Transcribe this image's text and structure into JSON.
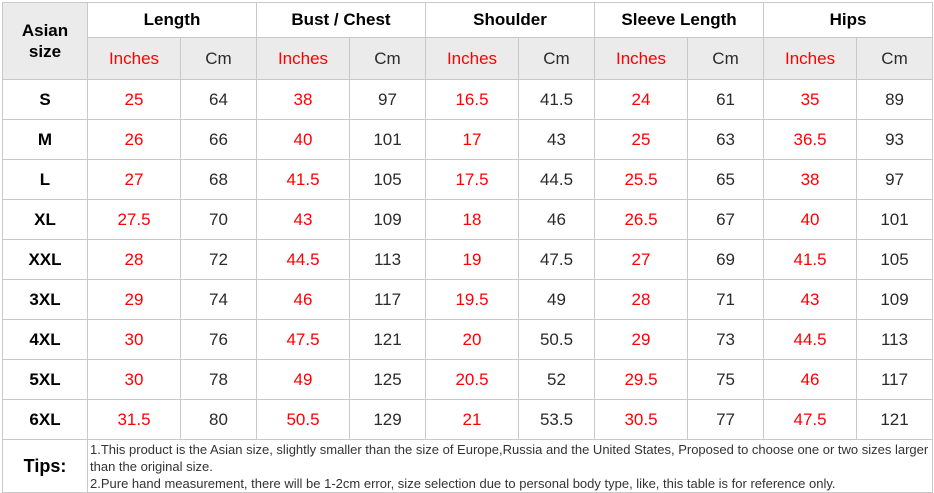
{
  "table": {
    "corner_header": "Asian size",
    "measurements": [
      "Length",
      "Bust / Chest",
      "Shoulder",
      "Sleeve Length",
      "Hips"
    ],
    "units": [
      "Inches",
      "Cm"
    ],
    "rows": [
      {
        "size": "S",
        "values": [
          "25",
          "64",
          "38",
          "97",
          "16.5",
          "41.5",
          "24",
          "61",
          "35",
          "89"
        ]
      },
      {
        "size": "M",
        "values": [
          "26",
          "66",
          "40",
          "101",
          "17",
          "43",
          "25",
          "63",
          "36.5",
          "93"
        ]
      },
      {
        "size": "L",
        "values": [
          "27",
          "68",
          "41.5",
          "105",
          "17.5",
          "44.5",
          "25.5",
          "65",
          "38",
          "97"
        ]
      },
      {
        "size": "XL",
        "values": [
          "27.5",
          "70",
          "43",
          "109",
          "18",
          "46",
          "26.5",
          "67",
          "40",
          "101"
        ]
      },
      {
        "size": "XXL",
        "values": [
          "28",
          "72",
          "44.5",
          "113",
          "19",
          "47.5",
          "27",
          "69",
          "41.5",
          "105"
        ]
      },
      {
        "size": "3XL",
        "values": [
          "29",
          "74",
          "46",
          "117",
          "19.5",
          "49",
          "28",
          "71",
          "43",
          "109"
        ]
      },
      {
        "size": "4XL",
        "values": [
          "30",
          "76",
          "47.5",
          "121",
          "20",
          "50.5",
          "29",
          "73",
          "44.5",
          "113"
        ]
      },
      {
        "size": "5XL",
        "values": [
          "30",
          "78",
          "49",
          "125",
          "20.5",
          "52",
          "29.5",
          "75",
          "46",
          "117"
        ]
      },
      {
        "size": "6XL",
        "values": [
          "31.5",
          "80",
          "50.5",
          "129",
          "21",
          "53.5",
          "30.5",
          "77",
          "47.5",
          "121"
        ]
      }
    ]
  },
  "tips": {
    "label": "Tips:",
    "lines": [
      "1.This product is the Asian size, slightly smaller than the size of Europe,Russia and the United States, Proposed to choose one or two sizes larger than the original size.",
      "2.Pure hand measurement, there will be 1-2cm error, size selection due to personal body type, like, this table is for reference only."
    ]
  },
  "colors": {
    "accent_red": "#ff0000",
    "value_text": "#2b2b2b",
    "tips_text": "#333333",
    "header_bg": "#ebebeb",
    "border": "#c9c9c9"
  }
}
